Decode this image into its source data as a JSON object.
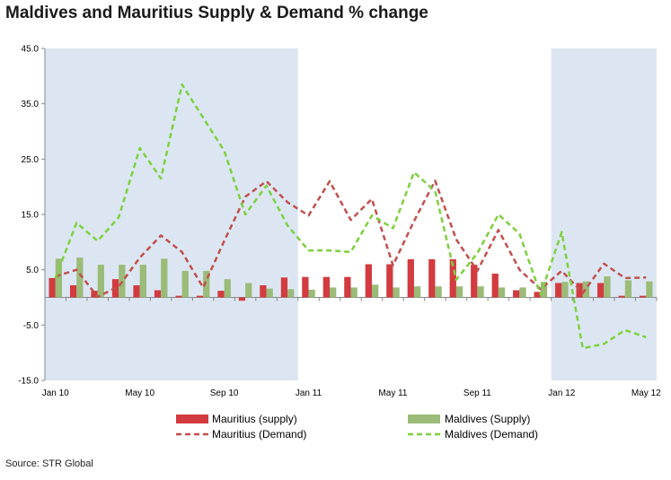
{
  "title": "Maldives and Mauritius Supply & Demand % change",
  "source": "Source: STR Global",
  "chart_data": {
    "type": "bar",
    "title": "Maldives and Mauritius Supply & Demand % change",
    "xlabel": "",
    "ylabel": "",
    "ylim": [
      -15,
      45
    ],
    "yticks": [
      "45.0",
      "35.0",
      "25.0",
      "15.0",
      "5.0",
      "-5.0",
      "-15.0"
    ],
    "ytick_values": [
      45,
      35,
      25,
      15,
      5,
      -5,
      -15
    ],
    "categories": [
      "Jan 10",
      "Feb 10",
      "Mar 10",
      "Apr 10",
      "May 10",
      "Jun 10",
      "Jul 10",
      "Aug 10",
      "Sep 10",
      "Oct 10",
      "Nov 10",
      "Dec 10",
      "Jan 11",
      "Feb 11",
      "Mar 11",
      "Apr 11",
      "May 11",
      "Jun 11",
      "Jul 11",
      "Aug 11",
      "Sep 11",
      "Oct 11",
      "Nov 11",
      "Dec 11",
      "Jan 12",
      "Feb 12",
      "Mar 12",
      "Apr 12",
      "May 12"
    ],
    "x_tick_labels": [
      {
        "index": 0,
        "label": "Jan 10"
      },
      {
        "index": 4,
        "label": "May 10"
      },
      {
        "index": 8,
        "label": "Sep 10"
      },
      {
        "index": 12,
        "label": "Jan 11"
      },
      {
        "index": 16,
        "label": "May 11"
      },
      {
        "index": 20,
        "label": "Sep 11"
      },
      {
        "index": 24,
        "label": "Jan 12"
      },
      {
        "index": 28,
        "label": "May 12"
      }
    ],
    "shaded_ranges": [
      [
        0,
        11
      ],
      [
        24,
        28
      ]
    ],
    "series": [
      {
        "name": "Mauritius (supply)",
        "kind": "bar",
        "color": "#d23b3f",
        "values": [
          3.5,
          2.2,
          1.2,
          3.3,
          2.2,
          1.3,
          0.3,
          0.3,
          1.2,
          -0.6,
          2.2,
          3.6,
          3.7,
          3.7,
          3.7,
          6.0,
          6.0,
          6.9,
          6.9,
          6.9,
          5.9,
          4.3,
          1.3,
          1.0,
          2.6,
          2.6,
          2.6,
          0.3,
          0.3
        ]
      },
      {
        "name": "Maldives (Supply)",
        "kind": "bar",
        "color": "#9bbb78",
        "values": [
          7.0,
          7.2,
          5.9,
          5.9,
          5.9,
          7.0,
          4.8,
          4.8,
          3.3,
          2.6,
          1.6,
          1.5,
          1.4,
          1.8,
          1.8,
          2.3,
          1.8,
          2.0,
          2.0,
          2.0,
          2.0,
          1.8,
          1.8,
          2.8,
          2.8,
          2.9,
          3.8,
          3.1,
          2.9
        ]
      },
      {
        "name": "Mauritius (Demand)",
        "kind": "line",
        "color": "#c0504d",
        "values": [
          3.8,
          5.0,
          0.1,
          2.0,
          7.2,
          11.2,
          8.2,
          1.8,
          10.2,
          18.2,
          21.0,
          17.2,
          14.8,
          21.0,
          14.0,
          17.8,
          5.8,
          13.8,
          21.1,
          10.5,
          4.8,
          12.2,
          5.0,
          1.5,
          4.8,
          0.8,
          6.1,
          3.5,
          3.6
        ]
      },
      {
        "name": "Maldives (Demand)",
        "kind": "line",
        "color": "#7ed03f",
        "values": [
          3.5,
          13.5,
          10.2,
          14.5,
          27.0,
          21.5,
          38.5,
          32.5,
          26.5,
          15.0,
          20.2,
          13.0,
          8.5,
          8.5,
          8.2,
          14.8,
          12.5,
          22.6,
          19.2,
          3.2,
          8.0,
          15.0,
          11.5,
          0.5,
          11.8,
          -9.2,
          -8.4,
          -5.9,
          -7.2
        ]
      }
    ],
    "grid": false,
    "legend_position": "bottom"
  }
}
